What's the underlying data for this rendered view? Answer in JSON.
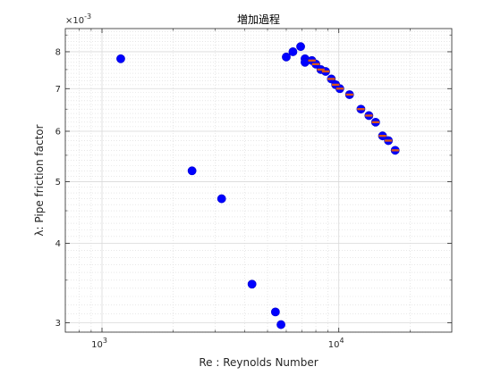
{
  "chart_data": {
    "type": "scatter",
    "title": "増加過程",
    "xlabel": "Re : Reynolds Number",
    "ylabel": "λ: Pipe friction factor",
    "xscale": "log",
    "yscale": "log",
    "xlim": [
      700,
      30000
    ],
    "ylim": [
      0.0029,
      0.0087
    ],
    "y_exponent_label": "×10",
    "y_exponent_power": "-3",
    "x_ticks": [
      {
        "value": 1000,
        "base": "10",
        "power": "3"
      },
      {
        "value": 10000,
        "base": "10",
        "power": "4"
      }
    ],
    "y_ticks": [
      {
        "value": 0.003,
        "label": "3"
      },
      {
        "value": 0.004,
        "label": "4"
      },
      {
        "value": 0.005,
        "label": "5"
      },
      {
        "value": 0.006,
        "label": "6"
      },
      {
        "value": 0.007,
        "label": "7"
      },
      {
        "value": 0.008,
        "label": "8"
      }
    ],
    "grid": true,
    "minor_grid": true,
    "colors": {
      "marker": "#0000ff",
      "marker_edge": "#0000cc",
      "overlay": "#d95319",
      "grid": "#d9d9d9",
      "axis": "#262626"
    },
    "series": [
      {
        "marker": "circle",
        "x": [
          1200,
          2400,
          3200,
          4300,
          5400,
          5700,
          6000,
          6400,
          6900,
          7200,
          7200,
          7700,
          8000,
          8400,
          8800,
          9300,
          9700,
          10100,
          11100,
          12400,
          13400,
          14300,
          15300,
          16200,
          17300
        ],
        "y": [
          0.0078,
          0.0052,
          0.0047,
          0.00345,
          0.00312,
          0.00298,
          0.00785,
          0.008,
          0.00815,
          0.0078,
          0.0077,
          0.00775,
          0.00765,
          0.0075,
          0.00745,
          0.00725,
          0.0071,
          0.007,
          0.00685,
          0.0065,
          0.00635,
          0.0062,
          0.0059,
          0.0058,
          0.0056
        ]
      },
      {
        "marker": "dash",
        "x": [
          7700,
          8000,
          8400,
          8800,
          9300,
          9700,
          10100,
          11100,
          12400,
          13400,
          14300,
          15300,
          16200,
          17300
        ],
        "y": [
          0.00775,
          0.00765,
          0.0075,
          0.00745,
          0.00725,
          0.0071,
          0.007,
          0.00685,
          0.0065,
          0.00635,
          0.0062,
          0.0059,
          0.0058,
          0.0056
        ]
      }
    ]
  }
}
